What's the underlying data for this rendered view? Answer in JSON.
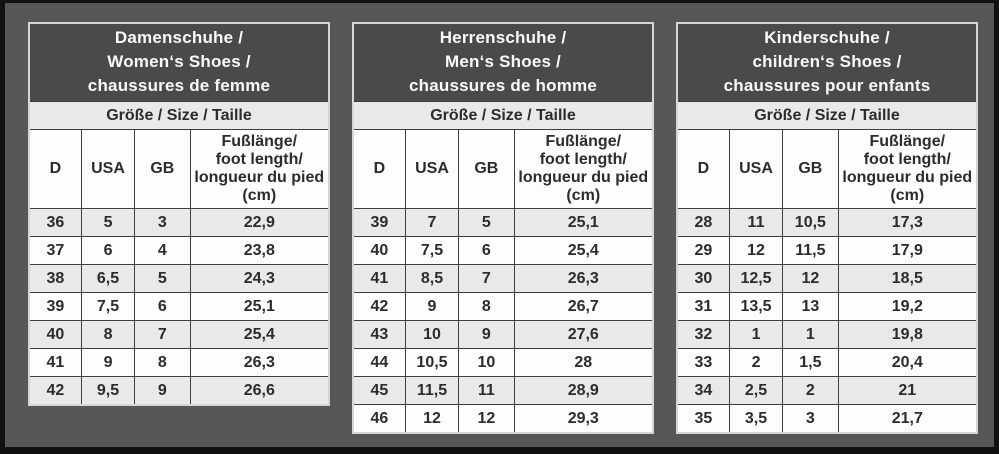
{
  "page": {
    "background_color": "#57575a",
    "frame_color": "#111111"
  },
  "colors": {
    "header_bg": "#4a4a4d",
    "header_text": "#fafafa",
    "subheader_bg": "#e9e9e7",
    "row_alt_bg": "#e9e9e7",
    "row_bg": "#fdfdfd",
    "grid_line": "#3e3e40",
    "outer_border": "#d6d6d6",
    "text": "#2c2c2e"
  },
  "tables": [
    {
      "id": "women",
      "title_lines": [
        "Damenschuhe /",
        "Women‘s Shoes /",
        "chaussures de femme"
      ],
      "subheader": "Größe / Size / Taille",
      "columns": [
        "D",
        "USA",
        "GB"
      ],
      "foot_column_lines": [
        "Fußlänge/",
        "foot length/",
        "longueur du pied",
        "(cm)"
      ],
      "rows": [
        [
          "36",
          "5",
          "3",
          "22,9"
        ],
        [
          "37",
          "6",
          "4",
          "23,8"
        ],
        [
          "38",
          "6,5",
          "5",
          "24,3"
        ],
        [
          "39",
          "7,5",
          "6",
          "25,1"
        ],
        [
          "40",
          "8",
          "7",
          "25,4"
        ],
        [
          "41",
          "9",
          "8",
          "26,3"
        ],
        [
          "42",
          "9,5",
          "9",
          "26,6"
        ]
      ]
    },
    {
      "id": "men",
      "title_lines": [
        "Herrenschuhe /",
        "Men‘s Shoes /",
        "chaussures de homme"
      ],
      "subheader": "Größe / Size / Taille",
      "columns": [
        "D",
        "USA",
        "GB"
      ],
      "foot_column_lines": [
        "Fußlänge/",
        "foot length/",
        "longueur du pied",
        "(cm)"
      ],
      "rows": [
        [
          "39",
          "7",
          "5",
          "25,1"
        ],
        [
          "40",
          "7,5",
          "6",
          "25,4"
        ],
        [
          "41",
          "8,5",
          "7",
          "26,3"
        ],
        [
          "42",
          "9",
          "8",
          "26,7"
        ],
        [
          "43",
          "10",
          "9",
          "27,6"
        ],
        [
          "44",
          "10,5",
          "10",
          "28"
        ],
        [
          "45",
          "11,5",
          "11",
          "28,9"
        ],
        [
          "46",
          "12",
          "12",
          "29,3"
        ]
      ]
    },
    {
      "id": "children",
      "title_lines": [
        "Kinderschuhe /",
        "children‘s Shoes /",
        "chaussures pour enfants"
      ],
      "subheader": "Größe / Size / Taille",
      "columns": [
        "D",
        "USA",
        "GB"
      ],
      "foot_column_lines": [
        "Fußlänge/",
        "foot length/",
        "longueur du pied",
        "(cm)"
      ],
      "rows": [
        [
          "28",
          "11",
          "10,5",
          "17,3"
        ],
        [
          "29",
          "12",
          "11,5",
          "17,9"
        ],
        [
          "30",
          "12,5",
          "12",
          "18,5"
        ],
        [
          "31",
          "13,5",
          "13",
          "19,2"
        ],
        [
          "32",
          "1",
          "1",
          "19,8"
        ],
        [
          "33",
          "2",
          "1,5",
          "20,4"
        ],
        [
          "34",
          "2,5",
          "2",
          "21"
        ],
        [
          "35",
          "3,5",
          "3",
          "21,7"
        ]
      ]
    }
  ]
}
